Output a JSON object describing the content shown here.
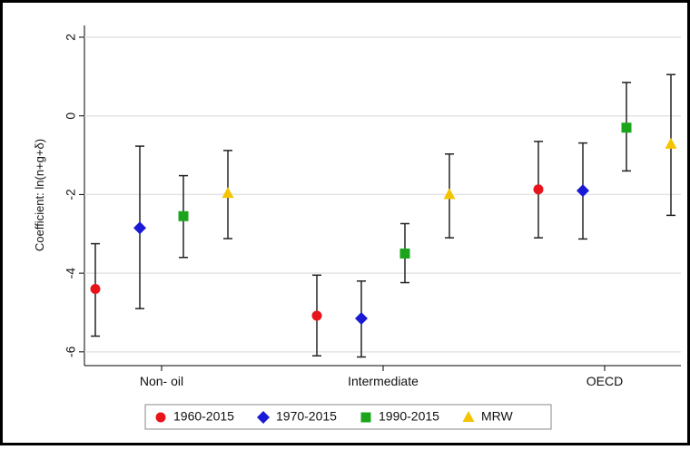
{
  "chart_data": {
    "type": "errorbar",
    "ylabel": "Coefficient: ln(n+g+δ)",
    "categories": [
      "Non- oil",
      "Intermediate",
      "OECD"
    ],
    "ylim": [
      -6.35,
      2.3
    ],
    "yticks": [
      -6,
      -4,
      -2,
      0,
      2
    ],
    "grid": true,
    "legend": "bottom",
    "series": [
      {
        "name": "1960-2015",
        "color": "#e8141c",
        "marker": "circle",
        "values": [
          -4.4,
          -5.08,
          -1.87
        ],
        "lower": [
          -5.6,
          -6.1,
          -3.1
        ],
        "upper": [
          -3.25,
          -4.05,
          -0.65
        ]
      },
      {
        "name": "1970-2015",
        "color": "#1a1ad6",
        "marker": "diamond",
        "values": [
          -2.85,
          -5.15,
          -1.9
        ],
        "lower": [
          -4.9,
          -6.13,
          -3.13
        ],
        "upper": [
          -0.77,
          -4.2,
          -0.69
        ]
      },
      {
        "name": "1990-2015",
        "color": "#1ca51c",
        "marker": "square",
        "values": [
          -2.55,
          -3.5,
          -0.3
        ],
        "lower": [
          -3.6,
          -4.24,
          -1.4
        ],
        "upper": [
          -1.52,
          -2.74,
          0.85
        ]
      },
      {
        "name": "MRW",
        "color": "#f5c400",
        "marker": "triangle",
        "values": [
          -1.97,
          -2.0,
          -0.72
        ],
        "lower": [
          -3.12,
          -3.1,
          -2.53
        ],
        "upper": [
          -0.88,
          -0.97,
          1.05
        ]
      }
    ]
  }
}
